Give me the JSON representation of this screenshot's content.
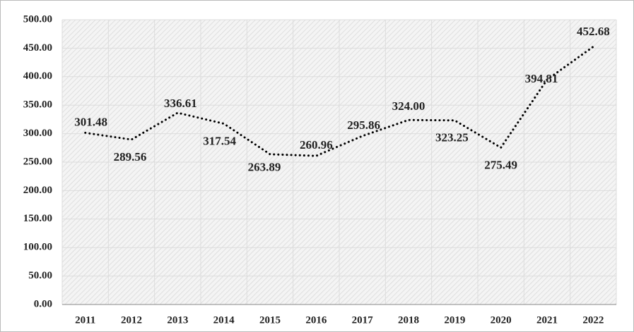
{
  "chart_data": {
    "type": "line",
    "categories": [
      "2011",
      "2012",
      "2013",
      "2014",
      "2015",
      "2016",
      "2017",
      "2018",
      "2019",
      "2020",
      "2021",
      "2022"
    ],
    "values": [
      301.48,
      289.56,
      336.61,
      317.54,
      263.89,
      260.96,
      295.86,
      324.0,
      323.25,
      275.49,
      394.81,
      452.68
    ],
    "value_labels": [
      "301.48",
      "289.56",
      "336.61",
      "317.54",
      "263.89",
      "260.96",
      "295.86",
      "324.00",
      "323.25",
      "275.49",
      "394.81",
      "452.68"
    ],
    "color": "#000000",
    "ylim": [
      0,
      500
    ],
    "yticks": [
      {
        "value": 0,
        "label": "0.00"
      },
      {
        "value": 50,
        "label": "50.00"
      },
      {
        "value": 100,
        "label": "100.00"
      },
      {
        "value": 150,
        "label": "150.00"
      },
      {
        "value": 200,
        "label": "200.00"
      },
      {
        "value": 250,
        "label": "250.00"
      },
      {
        "value": 300,
        "label": "300.00"
      },
      {
        "value": 350,
        "label": "350.00"
      },
      {
        "value": 400,
        "label": "400.00"
      },
      {
        "value": 450,
        "label": "450.00"
      },
      {
        "value": 500,
        "label": "500.00"
      }
    ],
    "grid": true
  }
}
